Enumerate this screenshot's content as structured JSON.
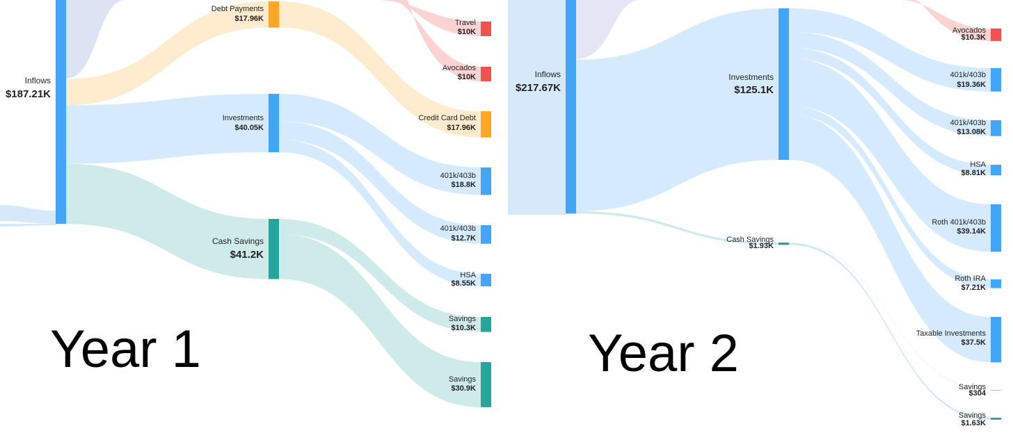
{
  "chart_data": [
    {
      "type": "sankey",
      "title": "Year 1",
      "nodes": [
        "Inflows",
        "Debt Payments",
        "Investments",
        "Cash Savings",
        "Travel",
        "Avocados",
        "Credit Card Debt",
        "401k/403b",
        "401k/403b",
        "HSA",
        "Savings",
        "Savings"
      ],
      "values": [
        187210,
        17960,
        40050,
        41200,
        10000,
        10000,
        17960,
        18800,
        12700,
        8550,
        10300,
        30900
      ],
      "value_labels": [
        "$187.21K",
        "$17.96K",
        "$40.05K",
        "$41.2K",
        "$10K",
        "$10K",
        "$17.96K",
        "$18.8K",
        "$12.7K",
        "$8.55K",
        "$10.3K",
        "$30.9K"
      ],
      "colors": [
        "#42a5f5",
        "#ffa726",
        "#42a5f5",
        "#26a69a",
        "#ef5350",
        "#ef5350",
        "#ffa726",
        "#42a5f5",
        "#42a5f5",
        "#42a5f5",
        "#26a69a",
        "#26a69a"
      ],
      "links": [
        {
          "source": 0,
          "target": 1
        },
        {
          "source": 0,
          "target": 2
        },
        {
          "source": 0,
          "target": 3
        },
        {
          "source": 1,
          "target": 6
        },
        {
          "source": 2,
          "target": 7
        },
        {
          "source": 2,
          "target": 8
        },
        {
          "source": 2,
          "target": 9
        },
        {
          "source": 3,
          "target": 10
        },
        {
          "source": 3,
          "target": 11
        }
      ]
    },
    {
      "type": "sankey",
      "title": "Year 2",
      "nodes": [
        "Inflows",
        "Investments",
        "Cash Savings",
        "Avocados",
        "401k/403b",
        "401k/403b",
        "HSA",
        "Roth 401k/403b",
        "Roth IRA",
        "Taxable Investments",
        "Savings",
        "Savings"
      ],
      "values": [
        217670,
        125100,
        1930,
        10300,
        19360,
        13080,
        8810,
        39140,
        7210,
        37500,
        304,
        1630
      ],
      "value_labels": [
        "$217.67K",
        "$125.1K",
        "$1.93K",
        "$10.3K",
        "$19.36K",
        "$13.08K",
        "$8.81K",
        "$39.14K",
        "$7.21K",
        "$37.5K",
        "$304",
        "$1.63K"
      ],
      "colors": [
        "#42a5f5",
        "#42a5f5",
        "#26a69a",
        "#ef5350",
        "#42a5f5",
        "#42a5f5",
        "#42a5f5",
        "#42a5f5",
        "#42a5f5",
        "#42a5f5",
        "#26a69a",
        "#26a69a"
      ],
      "links": [
        {
          "source": 0,
          "target": 1
        },
        {
          "source": 0,
          "target": 2
        },
        {
          "source": 1,
          "target": 4
        },
        {
          "source": 1,
          "target": 5
        },
        {
          "source": 1,
          "target": 6
        },
        {
          "source": 1,
          "target": 7
        },
        {
          "source": 1,
          "target": 8
        },
        {
          "source": 1,
          "target": 9
        },
        {
          "source": 2,
          "target": 10
        },
        {
          "source": 2,
          "target": 11
        }
      ]
    }
  ]
}
